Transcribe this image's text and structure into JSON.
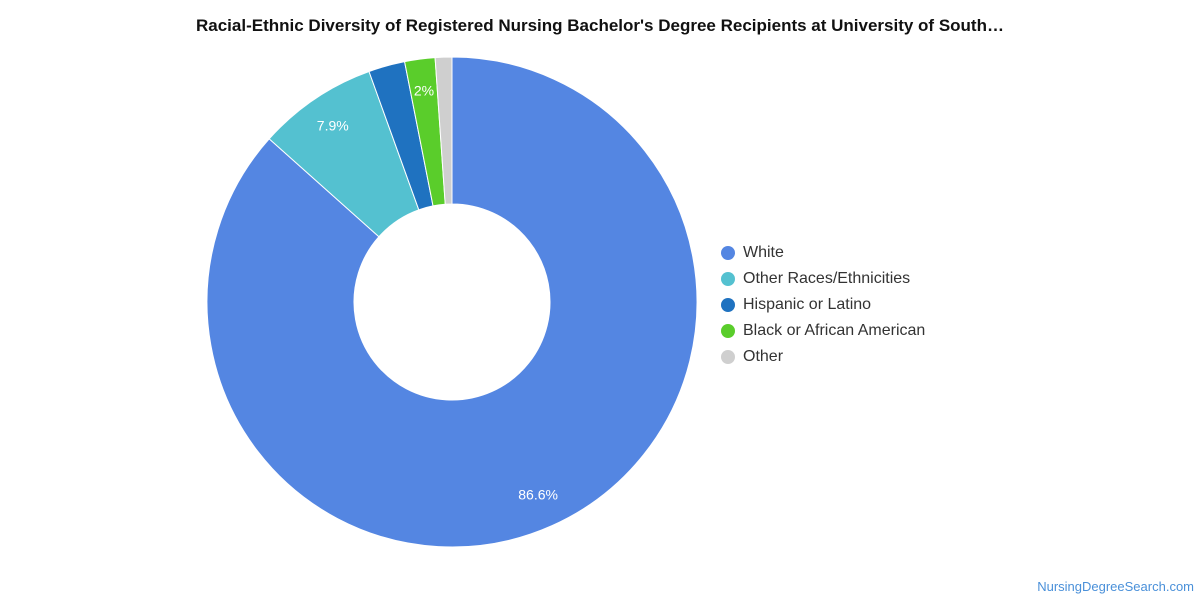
{
  "chart_data": {
    "type": "pie",
    "title": "Racial-Ethnic Diversity of Registered Nursing Bachelor's Degree Recipients at University of South…",
    "donut": true,
    "categories": [
      "White",
      "Other Races/Ethnicities",
      "Hispanic or Latino",
      "Black or African American",
      "Other"
    ],
    "values": [
      86.6,
      7.9,
      2.4,
      2.0,
      1.1
    ],
    "data_labels": [
      "86.6%",
      "7.9%",
      "",
      "2%",
      ""
    ],
    "colors": [
      "#5486e2",
      "#54c1d0",
      "#1f72c0",
      "#5acd2b",
      "#cfcfcf"
    ],
    "legend_position": "right"
  },
  "watermark": "NursingDegreeSearch.com"
}
